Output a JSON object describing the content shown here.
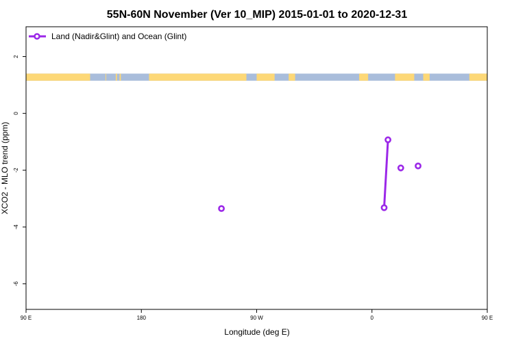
{
  "chart_data": {
    "type": "line",
    "title": "55N-60N November (Ver 10_MIP)   2015-01-01 to 2020-12-31",
    "xlabel": "Longitude (deg E)",
    "ylabel": "XCO2 - MLO trend (ppm)",
    "xlim": [
      90,
      450
    ],
    "ylim": [
      -6.9,
      3.05
    ],
    "x_ticks": [
      {
        "value": 90,
        "label": "90 E"
      },
      {
        "value": 180,
        "label": "180"
      },
      {
        "value": 270,
        "label": "90 W"
      },
      {
        "value": 360,
        "label": "0"
      },
      {
        "value": 450,
        "label": "90 E"
      },
      {
        "value": 540,
        "label": "180"
      }
    ],
    "y_ticks": [
      {
        "value": 2,
        "label": "2"
      },
      {
        "value": 0,
        "label": "0"
      },
      {
        "value": -2,
        "label": "-2"
      },
      {
        "value": -4,
        "label": "-4"
      },
      {
        "value": -6,
        "label": "-6"
      }
    ],
    "legend": {
      "position": "top-left"
    },
    "series": [
      {
        "name": "Land (Nadir&Glint) and Ocean (Glint)",
        "color": "#9b27e8",
        "segments": [
          [
            {
              "x": 242.5,
              "y": -3.35
            }
          ],
          [
            {
              "x": 369.5,
              "y": -3.32
            },
            {
              "x": 372.5,
              "y": -0.93
            }
          ],
          [
            {
              "x": 382.5,
              "y": -1.92
            }
          ],
          [
            {
              "x": 396.0,
              "y": -1.85
            }
          ]
        ]
      }
    ],
    "land_band": {
      "y_range": [
        1.15,
        1.4
      ],
      "ocean_color": "#a9bddb",
      "land_color": "#fdd877",
      "land_x": [
        [
          90,
          140
        ],
        [
          152,
          152.5
        ],
        [
          160,
          161
        ],
        [
          163,
          164
        ],
        [
          186,
          262
        ],
        [
          270,
          284
        ],
        [
          295,
          300
        ],
        [
          350,
          357
        ],
        [
          378,
          393
        ],
        [
          400,
          405
        ],
        [
          436,
          458
        ],
        [
          459,
          462
        ]
      ]
    }
  }
}
